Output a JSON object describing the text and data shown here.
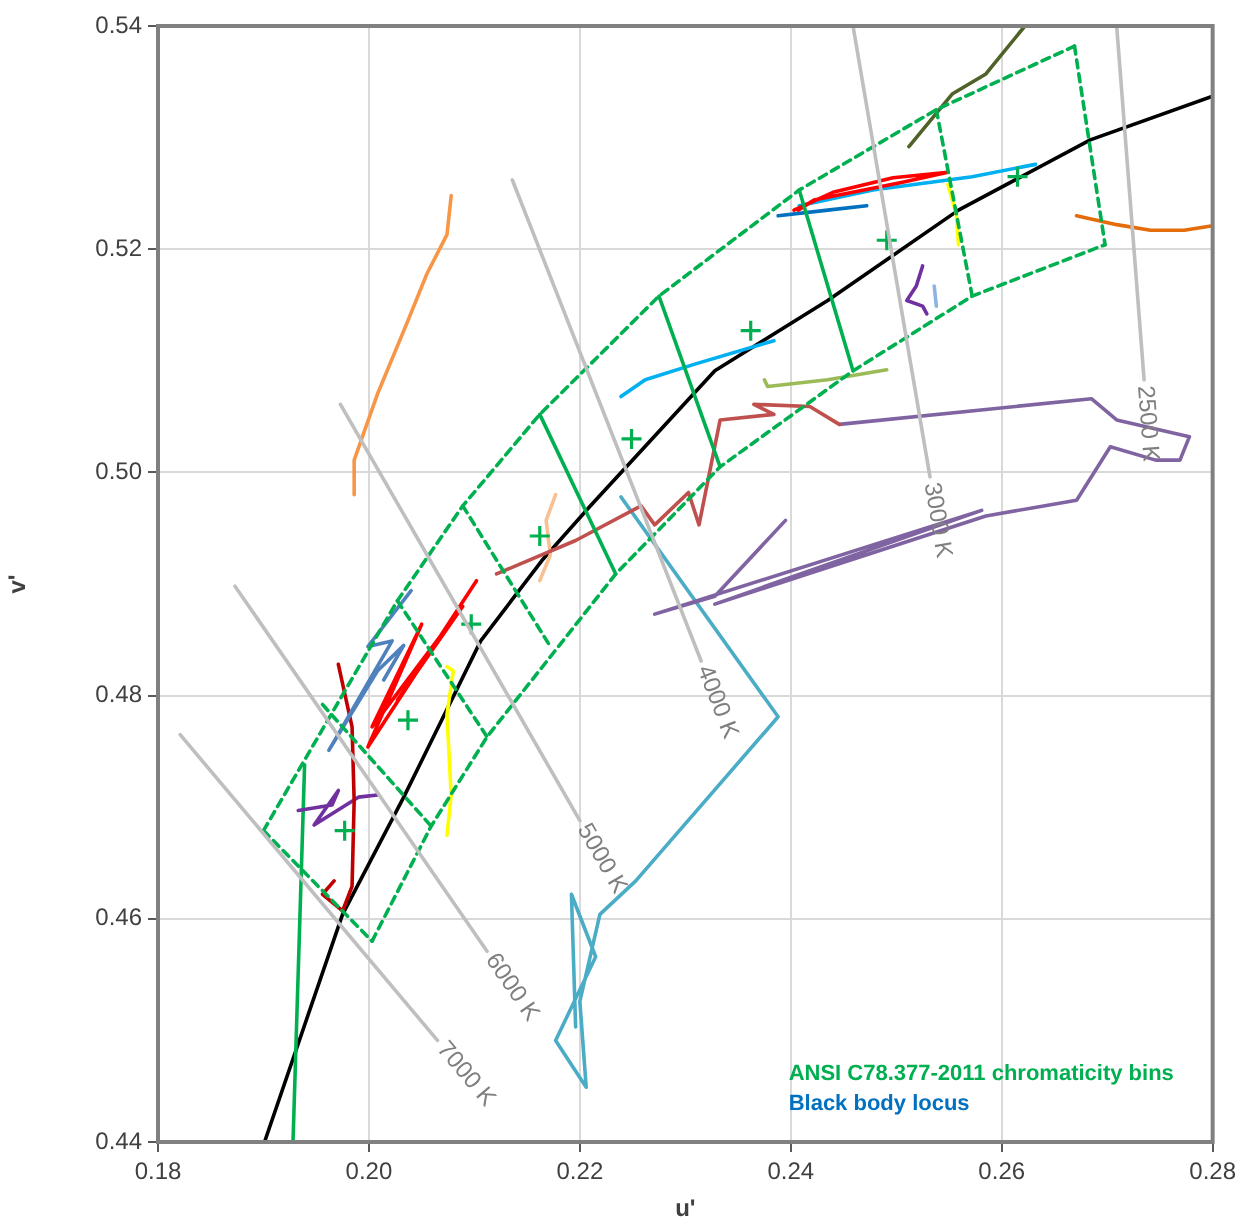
{
  "chart_data": {
    "type": "line",
    "xlabel": "u'",
    "ylabel": "v'",
    "xlim": [
      0.18,
      0.28
    ],
    "ylim": [
      0.44,
      0.54
    ],
    "xticks": [
      0.18,
      {
        "value": 0.2,
        "label": "0.20"
      },
      0.22,
      0.24,
      0.26,
      0.28
    ],
    "yticks": [
      0.44,
      0.46,
      0.48,
      {
        "value": 0.5,
        "label": "0.50"
      },
      0.52,
      0.54
    ],
    "grid": true,
    "marker": "none",
    "line_style": "solid",
    "annotations": [
      {
        "text": "2500 K",
        "x": 0.2735,
        "y": 0.5083
      },
      {
        "text": "3000 K",
        "x": 0.2532,
        "y": 0.4996
      },
      {
        "text": "4000 K",
        "x": 0.2315,
        "y": 0.4831
      },
      {
        "text": "5000 K",
        "x": 0.22,
        "y": 0.4688
      },
      {
        "text": "6000 K",
        "x": 0.2112,
        "y": 0.4571
      },
      {
        "text": "7000 K",
        "x": 0.2065,
        "y": 0.4491
      },
      "ANSI C78.377-2011 chromaticity bins",
      "Black body locus"
    ],
    "series": [
      {
        "color": "#bfbfbf",
        "x": [
          0.2709,
          0.2735
        ],
        "values": [
          0.54,
          0.5083
        ]
      },
      {
        "color": "#bfbfbf",
        "x": [
          0.2459,
          0.2532
        ],
        "values": [
          0.54,
          0.4996
        ]
      },
      {
        "color": "#bfbfbf",
        "x": [
          0.2136,
          0.2315
        ],
        "values": [
          0.5262,
          0.4831
        ]
      },
      {
        "color": "#bfbfbf",
        "x": [
          0.1973,
          0.22
        ],
        "values": [
          0.5061,
          0.4688
        ]
      },
      {
        "color": "#bfbfbf",
        "x": [
          0.1873,
          0.2112
        ],
        "values": [
          0.4898,
          0.4571
        ]
      },
      {
        "color": "#bfbfbf",
        "x": [
          0.1821,
          0.2065
        ],
        "values": [
          0.4765,
          0.4491
        ]
      },
      {
        "color": "#00b050",
        "line_style": "dashed",
        "x": [
          0.19,
          0.2027,
          0.2089,
          0.2162,
          0.2275,
          0.2408,
          0.2538,
          0.2669
        ],
        "values": [
          0.4679,
          0.4885,
          0.497,
          0.5052,
          0.5158,
          0.5253,
          0.5325,
          0.5382
        ]
      },
      {
        "color": "#00b050",
        "line_style": "dashed",
        "x": [
          0.2669,
          0.2698
        ],
        "values": [
          0.5382,
          0.5204
        ]
      },
      {
        "color": "#00b050",
        "line_style": "dashed",
        "x": [
          0.2003,
          0.2059,
          0.2112,
          0.2234,
          0.2333,
          0.2459,
          0.2572,
          0.2698
        ],
        "values": [
          0.458,
          0.4683,
          0.4763,
          0.4909,
          0.5005,
          0.5091,
          0.5158,
          0.5204
        ]
      },
      {
        "color": "#00b050",
        "line_style": "dashed",
        "x": [
          0.19,
          0.2003
        ],
        "values": [
          0.4679,
          0.458
        ]
      },
      {
        "color": "#00b050",
        "line_style": "dashed",
        "x": [
          0.1956,
          0.2059
        ],
        "values": [
          0.4792,
          0.4683
        ]
      },
      {
        "color": "#00b050",
        "line_style": "dashed",
        "x": [
          0.2027,
          0.2112
        ],
        "values": [
          0.4885,
          0.4763
        ]
      },
      {
        "color": "#00b050",
        "line_style": "dashed",
        "x": [
          0.2089,
          0.2172
        ],
        "values": [
          0.497,
          0.4844
        ]
      },
      {
        "color": "#00b050",
        "x": [
          0.2162,
          0.2234
        ],
        "values": [
          0.5052,
          0.4909
        ]
      },
      {
        "color": "#00b050",
        "x": [
          0.2275,
          0.2333
        ],
        "values": [
          0.5158,
          0.5005
        ]
      },
      {
        "color": "#00b050",
        "x": [
          0.2408,
          0.2459
        ],
        "values": [
          0.5253,
          0.5091
        ]
      },
      {
        "color": "#00b050",
        "line_style": "dashed",
        "x": [
          0.2538,
          0.2572
        ],
        "values": [
          0.5325,
          0.5158
        ]
      },
      {
        "type": "scatter",
        "marker": "cross",
        "color": "#00b050",
        "x": [
          0.1977,
          0.2037,
          0.2097,
          0.2162,
          0.2249,
          0.2362,
          0.2491,
          0.2615
        ],
        "values": [
          0.4679,
          0.4778,
          0.4864,
          0.4943,
          0.503,
          0.5127,
          0.5208,
          0.5265
        ]
      },
      {
        "color": "#f79646",
        "x": [
          0.1986,
          0.1986,
          0.2008,
          0.2037,
          0.2055,
          0.2074,
          0.2078
        ],
        "values": [
          0.498,
          0.5011,
          0.507,
          0.5136,
          0.5178,
          0.5213,
          0.5248
        ]
      },
      {
        "color": "#e46c0a",
        "x": [
          0.2671,
          0.2709,
          0.2741,
          0.2773,
          0.28
        ],
        "values": [
          0.523,
          0.5222,
          0.5217,
          0.5217,
          0.5221
        ]
      },
      {
        "color": "#4f6228",
        "x": [
          0.2512,
          0.2553,
          0.2585,
          0.2622
        ],
        "values": [
          0.5292,
          0.5339,
          0.5357,
          0.54
        ]
      },
      {
        "color": "#ff0000",
        "x": [
          0.2403,
          0.244,
          0.2497,
          0.2549,
          0.2506,
          0.2422,
          0.2407
        ],
        "values": [
          0.5235,
          0.5251,
          0.5264,
          0.5269,
          0.526,
          0.5244,
          0.5235
        ]
      },
      {
        "color": "#00b0f0",
        "x": [
          0.2408,
          0.2478,
          0.2572,
          0.2632
        ],
        "values": [
          0.5239,
          0.5253,
          0.5265,
          0.5276
        ]
      },
      {
        "color": "#0070c0",
        "x": [
          0.2388,
          0.2435,
          0.2472
        ],
        "values": [
          0.523,
          0.5235,
          0.5239
        ]
      },
      {
        "color": "#ffff00",
        "x": [
          0.2549,
          0.2557,
          0.2559
        ],
        "values": [
          0.5258,
          0.5231,
          0.5204
        ]
      },
      {
        "color": "#7030a0",
        "x": [
          0.2525,
          0.2519,
          0.251,
          0.2525,
          0.2529
        ],
        "values": [
          0.5185,
          0.5167,
          0.5154,
          0.5149,
          0.5142
        ]
      },
      {
        "color": "#8db3e2",
        "x": [
          0.2536,
          0.2538
        ],
        "values": [
          0.5167,
          0.5149
        ]
      },
      {
        "color": "#9bbb59",
        "x": [
          0.2375,
          0.2378,
          0.2435,
          0.2491
        ],
        "values": [
          0.5083,
          0.5077,
          0.5083,
          0.5092
        ]
      },
      {
        "color": "#00b0f0",
        "x": [
          0.2239,
          0.2262,
          0.2309,
          0.2384
        ],
        "values": [
          0.5068,
          0.5083,
          0.5097,
          0.5118
        ]
      },
      {
        "color": "#c0504d",
        "x": [
          0.2121,
          0.2196,
          0.2258,
          0.2271,
          0.2303,
          0.2313,
          0.2333,
          0.2384,
          0.2365,
          0.2418,
          0.2446
        ],
        "values": [
          0.4909,
          0.4939,
          0.497,
          0.4953,
          0.4982,
          0.4953,
          0.5047,
          0.5052,
          0.5061,
          0.5059,
          0.5043
        ]
      },
      {
        "color": "#8064a2",
        "x": [
          0.2446,
          0.2685,
          0.2709,
          0.2778,
          0.2769,
          0.2746,
          0.2703,
          0.2671,
          0.2585,
          0.2328,
          0.2581,
          0.2271,
          0.2328,
          0.2395
        ],
        "values": [
          0.5043,
          0.5066,
          0.5047,
          0.5032,
          0.5011,
          0.5011,
          0.5023,
          0.4975,
          0.4961,
          0.4882,
          0.4966,
          0.4873,
          0.4889,
          0.4957
        ]
      },
      {
        "color": "#4bacc6",
        "x": [
          0.2239,
          0.2388,
          0.2253,
          0.2219,
          0.22,
          0.2206,
          0.2177,
          0.2215,
          0.2192,
          0.2196
        ],
        "values": [
          0.4978,
          0.4781,
          0.4634,
          0.4604,
          0.4526,
          0.4449,
          0.4491,
          0.4566,
          0.4622,
          0.4503
        ]
      },
      {
        "color": "#fac090",
        "x": [
          0.2177,
          0.2168,
          0.2172,
          0.2162
        ],
        "values": [
          0.498,
          0.4957,
          0.4926,
          0.4903
        ]
      },
      {
        "color": "#ff0000",
        "x": [
          0.2102,
          0.1999,
          0.205,
          0.2003,
          0.2089,
          0.2027
        ],
        "values": [
          0.4903,
          0.4754,
          0.4864,
          0.4772,
          0.488,
          0.4796
        ]
      },
      {
        "color": "#4f81bd",
        "x": [
          0.204,
          0.1999,
          0.2022,
          0.1962,
          0.2008,
          0.2033,
          0.2014
        ],
        "values": [
          0.4894,
          0.4844,
          0.4849,
          0.4751,
          0.4822,
          0.4845,
          0.4814
        ]
      },
      {
        "color": "#c00000",
        "x": [
          0.1971,
          0.1984,
          0.1986,
          0.1984,
          0.1975,
          0.1956,
          0.1967
        ],
        "values": [
          0.4828,
          0.4772,
          0.4706,
          0.4629,
          0.4607,
          0.4622,
          0.4634
        ]
      },
      {
        "color": "#ffff00",
        "x": [
          0.2074,
          0.208,
          0.2074,
          0.2078,
          0.2074
        ],
        "values": [
          0.4826,
          0.4822,
          0.4783,
          0.4711,
          0.4675
        ]
      },
      {
        "color": "#7030a0",
        "x": [
          0.1933,
          0.1965,
          0.1971,
          0.1948,
          0.199,
          0.2008
        ],
        "values": [
          0.4697,
          0.4702,
          0.4715,
          0.4684,
          0.4709,
          0.4711
        ]
      },
      {
        "color": "#00b050",
        "x": [
          0.1939,
          0.1928
        ],
        "values": [
          0.4738,
          0.44
        ]
      },
      {
        "color": "#000000",
        "x": [
          0.1901,
          0.1975,
          0.2033,
          0.2106,
          0.2164,
          0.2209,
          0.2328,
          0.2435,
          0.2559,
          0.2684,
          0.28
        ],
        "values": [
          0.44,
          0.4604,
          0.4709,
          0.4849,
          0.4921,
          0.4969,
          0.5091,
          0.5154,
          0.5235,
          0.5298,
          0.5337
        ]
      }
    ]
  }
}
